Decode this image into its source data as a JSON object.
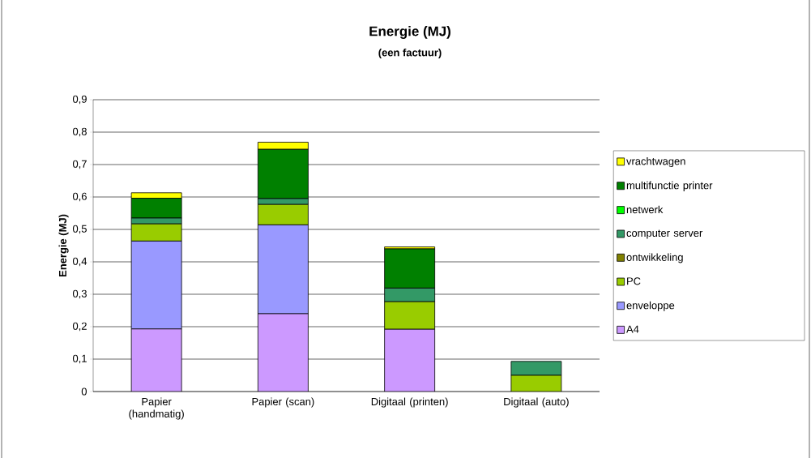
{
  "chart_data": {
    "type": "bar",
    "title": "Energie (MJ)",
    "subtitle": "(een factuur)",
    "ylabel": "Energie (MJ)",
    "categories": [
      "Papier (handmatig)",
      "Papier (scan)",
      "Digitaal (printen)",
      "Digitaal (auto)"
    ],
    "stacked": true,
    "grid": "y",
    "legend": "right",
    "ylim": [
      0,
      0.9
    ],
    "yticks": [
      {
        "value": 0,
        "label": "0"
      },
      {
        "value": 0.1,
        "label": "0,1"
      },
      {
        "value": 0.2,
        "label": "0,2"
      },
      {
        "value": 0.3,
        "label": "0,3"
      },
      {
        "value": 0.4,
        "label": "0,4"
      },
      {
        "value": 0.5,
        "label": "0,5"
      },
      {
        "value": 0.6,
        "label": "0,6"
      },
      {
        "value": 0.7,
        "label": "0,7"
      },
      {
        "value": 0.8,
        "label": "0,8"
      },
      {
        "value": 0.9,
        "label": "0,9"
      }
    ],
    "series": [
      {
        "name": "A4",
        "color": "#cc99ff",
        "values": [
          0.193,
          0.24,
          0.192,
          0
        ]
      },
      {
        "name": "enveloppe",
        "color": "#9999ff",
        "values": [
          0.271,
          0.274,
          0,
          0
        ]
      },
      {
        "name": "PC",
        "color": "#99cc00",
        "values": [
          0.053,
          0.063,
          0.085,
          0.05
        ]
      },
      {
        "name": "ontwikkeling",
        "color": "#808000",
        "values": [
          0,
          0,
          0,
          0
        ]
      },
      {
        "name": "computer server",
        "color": "#339966",
        "values": [
          0.018,
          0.018,
          0.042,
          0.043
        ]
      },
      {
        "name": "netwerk",
        "color": "#00ff00",
        "values": [
          0,
          0,
          0,
          0
        ]
      },
      {
        "name": "multifunctie printer",
        "color": "#008000",
        "values": [
          0.061,
          0.152,
          0.121,
          0
        ]
      },
      {
        "name": "vrachtwagen",
        "color": "#ffff00",
        "values": [
          0.017,
          0.022,
          0.006,
          0
        ]
      }
    ]
  }
}
